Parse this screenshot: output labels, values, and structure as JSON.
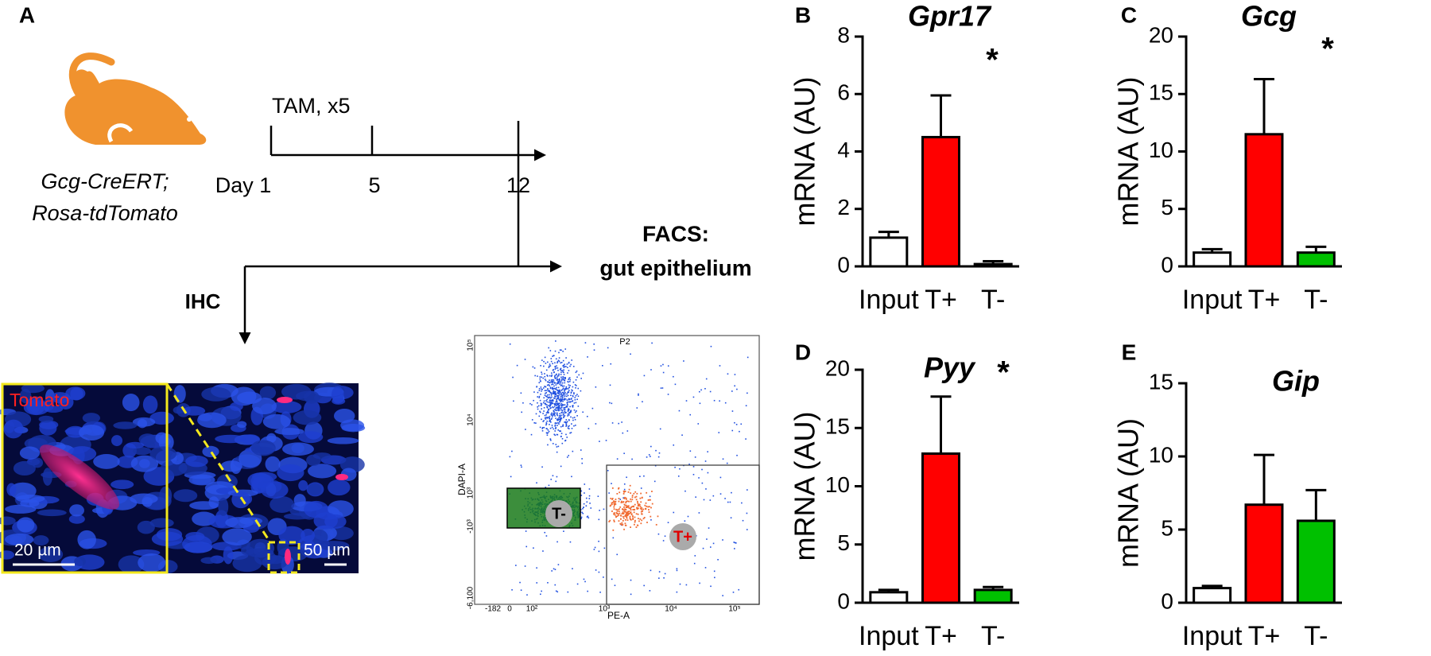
{
  "panel_a": {
    "label": "A",
    "genotype": [
      "Gcg-CreERT;",
      "Rosa-tdTomato"
    ],
    "treatment": "TAM, x5",
    "days": [
      "Day 1",
      "5",
      "12"
    ],
    "facs_label": [
      "FACS:",
      "gut epithelium"
    ],
    "ihc_label": "IHC",
    "stain": "Tomato",
    "scale_bars": [
      "20 µm",
      "50 µm"
    ],
    "facs_plot": {
      "gate": "P2",
      "y_label": "DAPI-A",
      "x_label": "PE-A",
      "gates": [
        "T-",
        "T+"
      ],
      "yticks": [
        "10⁵",
        "10⁴",
        "10³",
        "-10³",
        "-6,100"
      ],
      "xticks": [
        "-182",
        "0",
        "10²",
        "10³",
        "10⁴",
        "10⁵"
      ]
    }
  },
  "chart_data": [
    {
      "type": "bar",
      "panel": "B",
      "title": "Gpr17",
      "annotation": "*",
      "y_label": "mRNA (AU)",
      "categories": [
        "Input",
        "T+",
        "T-"
      ],
      "values": [
        1.0,
        4.5,
        0.08
      ],
      "errors": [
        0.2,
        1.45,
        0.1
      ],
      "colors": [
        "#ffffff",
        "#ff0000",
        "#00c000"
      ],
      "ylim": [
        0,
        8
      ],
      "yticks": [
        0,
        2,
        4,
        6,
        8
      ]
    },
    {
      "type": "bar",
      "panel": "C",
      "title": "Gcg",
      "annotation": "*",
      "y_label": "mRNA (AU)",
      "categories": [
        "Input",
        "T+",
        "T-"
      ],
      "values": [
        1.2,
        11.5,
        1.2
      ],
      "errors": [
        0.3,
        4.8,
        0.5
      ],
      "colors": [
        "#ffffff",
        "#ff0000",
        "#00c000"
      ],
      "ylim": [
        0,
        20
      ],
      "yticks": [
        0,
        5,
        10,
        15,
        20
      ]
    },
    {
      "type": "bar",
      "panel": "D",
      "title": "Pyy",
      "annotation": "*",
      "y_label": "mRNA (AU)",
      "categories": [
        "Input",
        "T+",
        "T-"
      ],
      "values": [
        0.9,
        12.8,
        1.1
      ],
      "errors": [
        0.2,
        4.9,
        0.25
      ],
      "colors": [
        "#ffffff",
        "#ff0000",
        "#00c000"
      ],
      "ylim": [
        0,
        20
      ],
      "yticks": [
        0,
        5,
        10,
        15,
        20
      ]
    },
    {
      "type": "bar",
      "panel": "E",
      "title": "Gip",
      "y_label": "mRNA (AU)",
      "categories": [
        "Input",
        "T+",
        "T-"
      ],
      "values": [
        1.0,
        6.7,
        5.6
      ],
      "errors": [
        0.15,
        3.4,
        2.1
      ],
      "colors": [
        "#ffffff",
        "#ff0000",
        "#00c000"
      ],
      "ylim": [
        0,
        15
      ],
      "yticks": [
        0,
        5,
        10,
        15
      ]
    }
  ]
}
